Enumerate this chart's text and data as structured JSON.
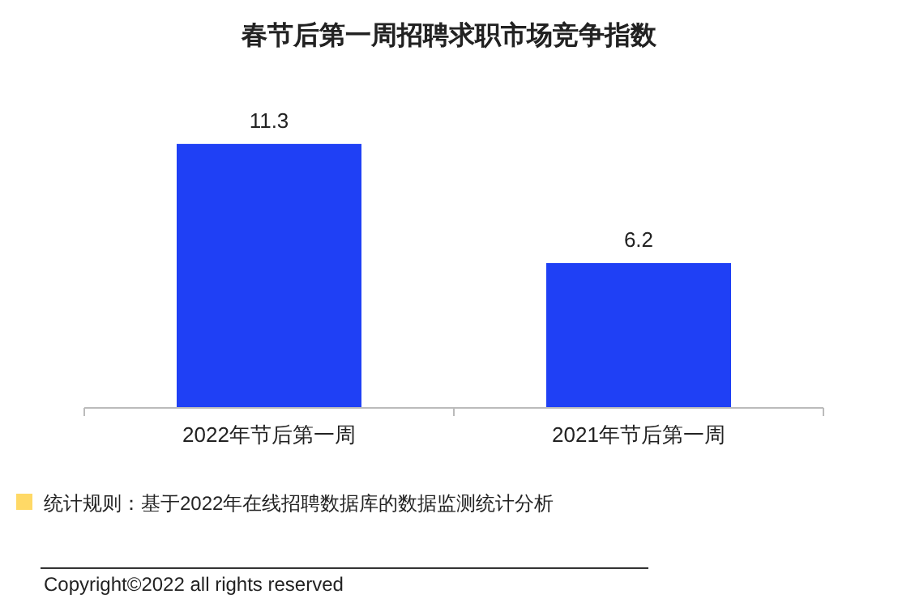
{
  "chart_data": {
    "type": "bar",
    "title": "春节后第一周招聘求职市场竞争指数",
    "categories": [
      "2022年节后第一周",
      "2021年节后第一周"
    ],
    "values": [
      11.3,
      6.2
    ],
    "color": "#1f40f5",
    "data_labels": true,
    "annotations": [
      "统计规则：基于2022年在线招聘数据库的数据监测统计分析",
      "Copyright©2022 all rights reserved"
    ]
  }
}
